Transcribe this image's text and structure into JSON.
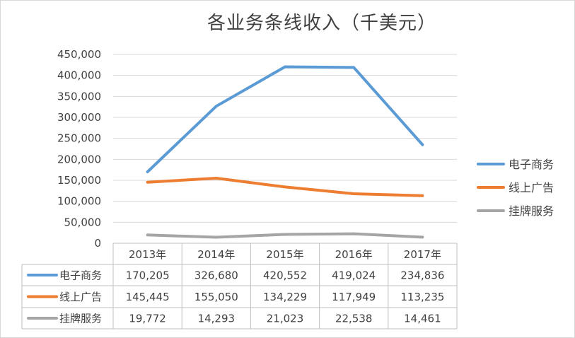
{
  "chart_data": {
    "type": "line",
    "title": "各业务条线收入（千美元）",
    "categories": [
      "2013年",
      "2014年",
      "2015年",
      "2016年",
      "2017年"
    ],
    "series": [
      {
        "name": "电子商务",
        "color": "#5b9bd5",
        "values": [
          170205,
          326680,
          420552,
          419024,
          234836
        ],
        "labels": [
          "170,205",
          "326,680",
          "420,552",
          "419,024",
          "234,836"
        ]
      },
      {
        "name": "线上广告",
        "color": "#ed7d31",
        "values": [
          145445,
          155050,
          134229,
          117949,
          113235
        ],
        "labels": [
          "145,445",
          "155,050",
          "134,229",
          "117,949",
          "113,235"
        ]
      },
      {
        "name": "挂牌服务",
        "color": "#a5a5a5",
        "values": [
          19772,
          14293,
          21023,
          22538,
          14461
        ],
        "labels": [
          "19,772",
          "14,293",
          "21,023",
          "22,538",
          "14,461"
        ]
      }
    ],
    "ylim": [
      0,
      450000
    ],
    "yticks": [
      0,
      50000,
      100000,
      150000,
      200000,
      250000,
      300000,
      350000,
      400000,
      450000
    ],
    "ytick_labels": [
      "0",
      "50,000",
      "100,000",
      "150,000",
      "200,000",
      "250,000",
      "300,000",
      "350,000",
      "400,000",
      "450,000"
    ],
    "grid": true,
    "legend_position": "right",
    "data_table": true
  }
}
